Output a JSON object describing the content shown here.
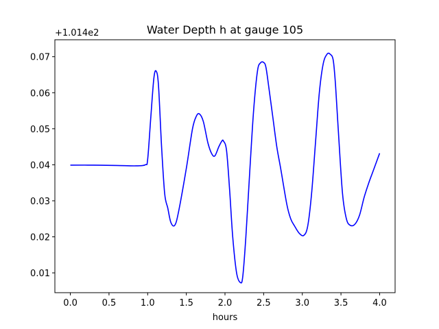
{
  "chart_data": {
    "type": "line",
    "title": "Water Depth h at gauge 105",
    "xlabel": "hours",
    "ylabel": "",
    "offset_label": "+1.014e2",
    "xlim": [
      -0.2,
      4.2
    ],
    "ylim": [
      0.0045,
      0.0747
    ],
    "xticks": [
      0.0,
      0.5,
      1.0,
      1.5,
      2.0,
      2.5,
      3.0,
      3.5,
      4.0
    ],
    "xtick_labels": [
      "0.0",
      "0.5",
      "1.0",
      "1.5",
      "2.0",
      "2.5",
      "3.0",
      "3.5",
      "4.0"
    ],
    "yticks": [
      0.01,
      0.02,
      0.03,
      0.04,
      0.05,
      0.06,
      0.07
    ],
    "ytick_labels": [
      "0.01",
      "0.02",
      "0.03",
      "0.04",
      "0.05",
      "0.06",
      "0.07"
    ],
    "grid": false,
    "line_color": "#0000ff",
    "series": [
      {
        "x": [
          0.0,
          0.3,
          0.6,
          0.85,
          0.97,
          1.0,
          1.04,
          1.08,
          1.11,
          1.14,
          1.18,
          1.22,
          1.26,
          1.3,
          1.35,
          1.4,
          1.5,
          1.58,
          1.63,
          1.67,
          1.72,
          1.78,
          1.83,
          1.87,
          1.92,
          1.96,
          1.98,
          2.02,
          2.06,
          2.1,
          2.15,
          2.2,
          2.23,
          2.27,
          2.32,
          2.37,
          2.42,
          2.46,
          2.5,
          2.53,
          2.57,
          2.62,
          2.67,
          2.72,
          2.8,
          2.85,
          2.9,
          2.96,
          3.02,
          3.07,
          3.12,
          3.17,
          3.22,
          3.27,
          3.32,
          3.36,
          3.4,
          3.43,
          3.47,
          3.52,
          3.57,
          3.62,
          3.68,
          3.74,
          3.8,
          3.86,
          3.92,
          4.0
        ],
        "y": [
          0.0399,
          0.0399,
          0.0398,
          0.0397,
          0.04,
          0.0415,
          0.053,
          0.064,
          0.066,
          0.062,
          0.045,
          0.032,
          0.028,
          0.024,
          0.0232,
          0.027,
          0.039,
          0.05,
          0.0535,
          0.0541,
          0.052,
          0.046,
          0.043,
          0.0425,
          0.045,
          0.0466,
          0.0466,
          0.044,
          0.033,
          0.02,
          0.01,
          0.0073,
          0.009,
          0.02,
          0.038,
          0.055,
          0.066,
          0.0683,
          0.0684,
          0.067,
          0.061,
          0.053,
          0.045,
          0.039,
          0.029,
          0.025,
          0.023,
          0.021,
          0.0204,
          0.023,
          0.032,
          0.046,
          0.06,
          0.068,
          0.0707,
          0.0707,
          0.069,
          0.062,
          0.048,
          0.032,
          0.025,
          0.0232,
          0.0235,
          0.026,
          0.031,
          0.035,
          0.0385,
          0.0432
        ]
      }
    ]
  }
}
